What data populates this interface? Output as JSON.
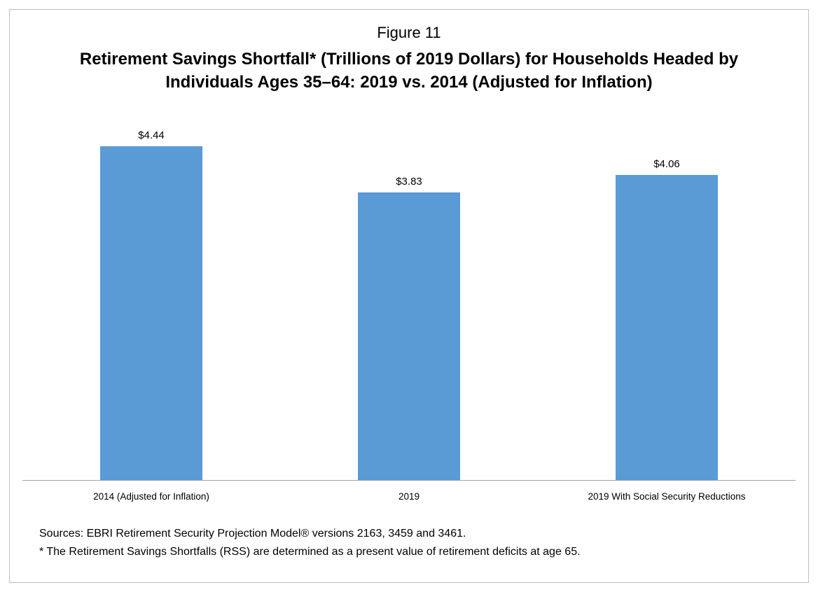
{
  "figure": {
    "label": "Figure 11"
  },
  "chart_data": {
    "type": "bar",
    "title": "Retirement Savings Shortfall* (Trillions of 2019 Dollars) for Households Headed by Individuals Ages 35–64: 2019 vs. 2014 (Adjusted for Inflation)",
    "categories": [
      "2014 (Adjusted for Inflation)",
      "2019",
      "2019 With Social Security Reductions"
    ],
    "values": [
      4.44,
      3.83,
      4.06
    ],
    "data_labels": [
      "$4.44",
      "$3.83",
      "$4.06"
    ],
    "xlabel": "",
    "ylabel": "",
    "ylim": [
      0,
      4.87
    ],
    "grid": false,
    "legend": false,
    "bar_color": "#5b9bd5",
    "axis_line_color": "#a6a6a6"
  },
  "footnotes": {
    "sources": "Sources: EBRI Retirement Security Projection Model® versions 2163, 3459 and 3461.",
    "note": "* The Retirement Savings Shortfalls (RSS) are determined as a present value of retirement deficits at age 65."
  }
}
